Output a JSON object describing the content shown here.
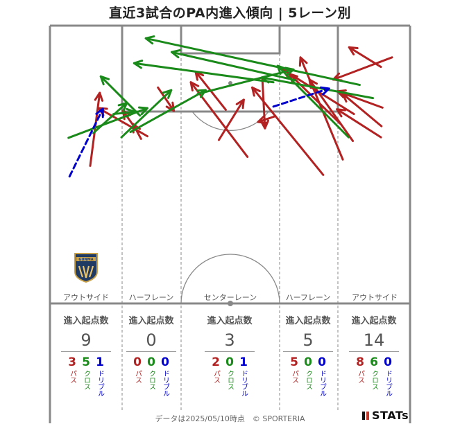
{
  "title": "直近3試合のPA内進入傾向 | 5レーン別",
  "lanes": [
    {
      "name": "アウトサイド",
      "header": "進入起点数",
      "total": "9",
      "pass": "3",
      "cross": "5",
      "dribble": "1"
    },
    {
      "name": "ハーフレーン",
      "header": "進入起点数",
      "total": "0",
      "pass": "0",
      "cross": "0",
      "dribble": "0"
    },
    {
      "name": "センターレーン",
      "header": "進入起点数",
      "total": "3",
      "pass": "2",
      "cross": "0",
      "dribble": "1"
    },
    {
      "name": "ハーフレーン",
      "header": "進入起点数",
      "total": "5",
      "pass": "5",
      "cross": "0",
      "dribble": "0"
    },
    {
      "name": "アウトサイド",
      "header": "進入起点数",
      "total": "14",
      "pass": "8",
      "cross": "6",
      "dribble": "0"
    }
  ],
  "type_labels": {
    "pass": "パス",
    "cross": "クロス",
    "dribble": "ドリブル"
  },
  "colors": {
    "pass": "#b22222",
    "cross": "#1a8a1a",
    "dribble": "#0000cc",
    "pitch_line": "#888888"
  },
  "footer": "データは2025/05/10時点　© SPORTERIA",
  "brand": "STATs",
  "club_logo_text": "GUNMA",
  "chart_data": {
    "type": "scatter",
    "title": "直近3試合のPA内進入傾向 | 5レーン別",
    "encoding": "arrows from entry start point to end point on attacking half pitch",
    "pitch_x_range": [
      0,
      68
    ],
    "pitch_y_range": [
      0,
      52.5
    ],
    "series": [
      {
        "name": "パス",
        "color": "#b22222",
        "arrows": [
          [
            7.6,
            26.0,
            9.4,
            39.8
          ],
          [
            18.4,
            31.6,
            9.2,
            36.9
          ],
          [
            16.2,
            33.0,
            13.8,
            36.4
          ],
          [
            17.2,
            31.1,
            15.7,
            33.9
          ],
          [
            20.4,
            40.8,
            23.4,
            36.4
          ],
          [
            37.3,
            27.7,
            26.6,
            41.8
          ],
          [
            33.2,
            36.6,
            27.5,
            43.8
          ],
          [
            31.9,
            30.9,
            36.6,
            38.5
          ],
          [
            42.6,
            35.4,
            39.3,
            34.3
          ],
          [
            40.1,
            42.6,
            40.6,
            33.1
          ],
          [
            51.6,
            24.3,
            38.2,
            40.8
          ],
          [
            55.0,
            33.8,
            45.2,
            43.4
          ],
          [
            57.4,
            35.8,
            44.0,
            44.2
          ],
          [
            55.3,
            27.2,
            47.3,
            46.5
          ],
          [
            57.2,
            30.7,
            49.0,
            42.3
          ],
          [
            62.5,
            31.4,
            54.2,
            36.7
          ],
          [
            62.6,
            33.5,
            55.3,
            39.6
          ],
          [
            62.8,
            37.0,
            54.3,
            40.1
          ],
          [
            64.6,
            46.5,
            53.5,
            42.3
          ],
          [
            62.5,
            44.7,
            56.5,
            48.4
          ]
        ]
      },
      {
        "name": "クロス",
        "color": "#1a8a1a",
        "arrows": [
          [
            3.5,
            31.3,
            18.4,
            36.9
          ],
          [
            12.0,
            35.8,
            16.0,
            36.2
          ],
          [
            15.2,
            32.4,
            29.4,
            40.3
          ],
          [
            13.5,
            31.4,
            22.9,
            40.3
          ],
          [
            8.2,
            32.2,
            14.5,
            37.9
          ],
          [
            17.0,
            35.5,
            9.6,
            42.9
          ],
          [
            27.9,
            39.6,
            46.0,
            44.2
          ],
          [
            42.2,
            41.8,
            15.9,
            45.4
          ],
          [
            46.3,
            42.2,
            23.0,
            47.5
          ],
          [
            58.5,
            41.3,
            18.1,
            50.1
          ],
          [
            61.0,
            38.8,
            40.0,
            42.7
          ],
          [
            56.4,
            31.4,
            43.0,
            44.9
          ]
        ]
      },
      {
        "name": "ドリブル",
        "color": "#0000cc",
        "arrows": [
          [
            3.7,
            24.0,
            10.0,
            36.8
          ],
          [
            42.2,
            37.2,
            52.7,
            40.6
          ]
        ]
      }
    ]
  }
}
